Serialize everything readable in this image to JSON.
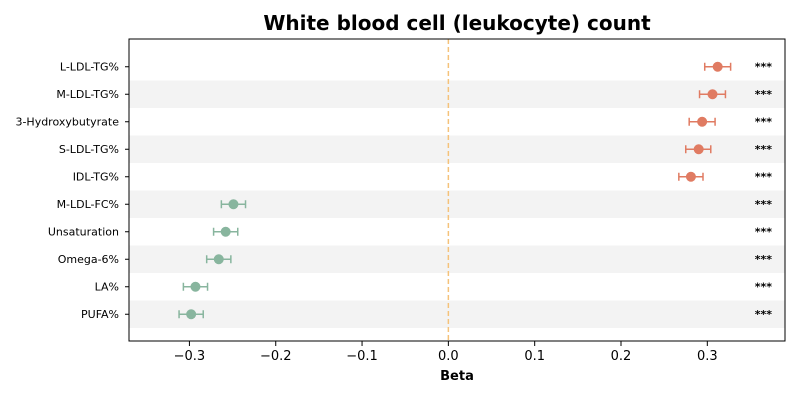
{
  "chart_data": {
    "type": "scatter",
    "title": "White blood cell (leukocyte) count",
    "xlabel": "Beta",
    "ylabel": "",
    "xlim": [
      -0.37,
      0.39
    ],
    "xticks": [
      -0.3,
      -0.2,
      -0.1,
      0.0,
      0.1,
      0.2,
      0.3
    ],
    "xtick_labels": [
      "−0.3",
      "−0.2",
      "−0.1",
      "0.0",
      "0.1",
      "0.2",
      "0.3"
    ],
    "reference_line": 0.0,
    "grid": false,
    "colors": {
      "positive": "#e07b62",
      "negative": "#88b59e",
      "reference": "#f5c27a",
      "band": "#f3f3f3"
    },
    "rows": [
      {
        "label": "L-LDL-TG%",
        "beta": 0.312,
        "ci_low": 0.297,
        "ci_high": 0.327,
        "sig": "***"
      },
      {
        "label": "M-LDL-TG%",
        "beta": 0.306,
        "ci_low": 0.291,
        "ci_high": 0.321,
        "sig": "***"
      },
      {
        "label": "3-Hydroxybutyrate",
        "beta": 0.294,
        "ci_low": 0.279,
        "ci_high": 0.309,
        "sig": "***"
      },
      {
        "label": "S-LDL-TG%",
        "beta": 0.29,
        "ci_low": 0.275,
        "ci_high": 0.304,
        "sig": "***"
      },
      {
        "label": "IDL-TG%",
        "beta": 0.281,
        "ci_low": 0.267,
        "ci_high": 0.295,
        "sig": "***"
      },
      {
        "label": "M-LDL-FC%",
        "beta": -0.249,
        "ci_low": -0.263,
        "ci_high": -0.235,
        "sig": "***"
      },
      {
        "label": "Unsaturation",
        "beta": -0.258,
        "ci_low": -0.272,
        "ci_high": -0.244,
        "sig": "***"
      },
      {
        "label": "Omega-6%",
        "beta": -0.266,
        "ci_low": -0.28,
        "ci_high": -0.252,
        "sig": "***"
      },
      {
        "label": "LA%",
        "beta": -0.293,
        "ci_low": -0.307,
        "ci_high": -0.279,
        "sig": "***"
      },
      {
        "label": "PUFA%",
        "beta": -0.298,
        "ci_low": -0.312,
        "ci_high": -0.284,
        "sig": "***"
      }
    ]
  }
}
